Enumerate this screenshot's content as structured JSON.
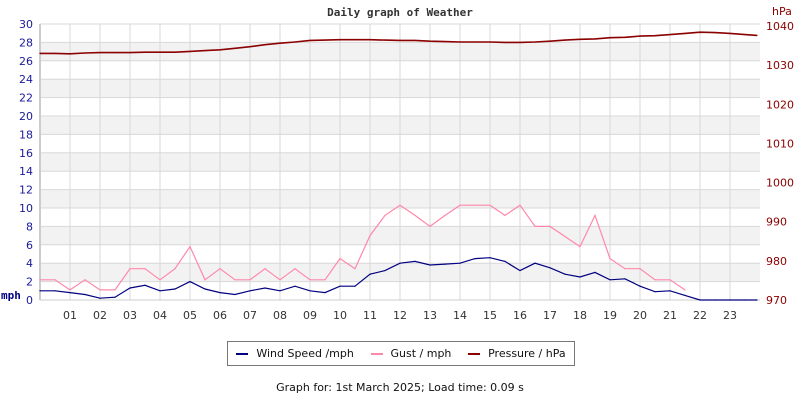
{
  "chart_data": {
    "type": "line",
    "title": "Daily graph of Weather",
    "left_unit": "mph",
    "right_unit": "hPa",
    "x_ticks": [
      "01",
      "02",
      "03",
      "04",
      "05",
      "06",
      "07",
      "08",
      "09",
      "10",
      "11",
      "12",
      "13",
      "14",
      "15",
      "16",
      "17",
      "18",
      "19",
      "20",
      "21",
      "22",
      "23"
    ],
    "xlim": [
      0,
      24
    ],
    "ylim_left": [
      0,
      30
    ],
    "y_ticks_left": [
      0,
      2,
      4,
      6,
      8,
      10,
      12,
      14,
      16,
      18,
      20,
      22,
      24,
      26,
      28,
      30
    ],
    "ylim_right": [
      970,
      1040.5
    ],
    "y_ticks_right": [
      970,
      980,
      990,
      1000,
      1010,
      1020,
      1030,
      1040
    ],
    "x_hours": [
      0,
      0.5,
      1,
      1.5,
      2,
      2.5,
      3,
      3.5,
      4,
      4.5,
      5,
      5.5,
      6,
      6.5,
      7,
      7.5,
      8,
      8.5,
      9,
      9.5,
      10,
      10.5,
      11,
      11.5,
      12,
      12.5,
      13,
      13.5,
      14,
      14.5,
      15,
      15.5,
      16,
      16.5,
      17,
      17.5,
      18,
      18.5,
      19,
      19.5,
      20,
      20.5,
      21,
      21.5,
      22,
      22.5,
      23,
      23.5,
      23.9
    ],
    "series": [
      {
        "name": "Wind Speed /mph",
        "axis": "left",
        "color": "#000080",
        "values": [
          1.0,
          1.0,
          0.8,
          0.6,
          0.2,
          0.3,
          1.3,
          1.6,
          1.0,
          1.2,
          2.0,
          1.2,
          0.8,
          0.6,
          1.0,
          1.3,
          1.0,
          1.5,
          1.0,
          0.8,
          1.5,
          1.5,
          2.8,
          3.2,
          4.0,
          4.2,
          3.8,
          3.9,
          4.0,
          4.5,
          4.6,
          4.2,
          3.2,
          4.0,
          3.5,
          2.8,
          2.5,
          3.0,
          2.2,
          2.3,
          1.5,
          0.9,
          1.0,
          0.5,
          0,
          0,
          0,
          0,
          0
        ]
      },
      {
        "name": "Gust / mph",
        "axis": "left",
        "color": "#ff88aa",
        "values": [
          2.2,
          2.2,
          1.1,
          2.2,
          1.1,
          1.1,
          3.4,
          3.4,
          2.2,
          3.4,
          5.8,
          2.2,
          3.4,
          2.2,
          2.2,
          3.4,
          2.2,
          3.4,
          2.2,
          2.2,
          4.5,
          3.4,
          7.0,
          9.2,
          10.3,
          9.2,
          8.0,
          9.2,
          10.3,
          10.3,
          10.3,
          9.2,
          10.3,
          8.0,
          8.0,
          6.9,
          5.8,
          9.2,
          4.5,
          3.4,
          3.4,
          2.2,
          2.2,
          1.1,
          null,
          null,
          null,
          null,
          null
        ]
      },
      {
        "name": "Pressure / hPa",
        "axis": "right",
        "color": "#8b0000",
        "values": [
          1033.0,
          1033.0,
          1032.9,
          1033.1,
          1033.2,
          1033.2,
          1033.2,
          1033.3,
          1033.3,
          1033.3,
          1033.5,
          1033.7,
          1033.9,
          1034.3,
          1034.7,
          1035.2,
          1035.6,
          1035.9,
          1036.3,
          1036.4,
          1036.5,
          1036.5,
          1036.5,
          1036.4,
          1036.3,
          1036.3,
          1036.1,
          1036.0,
          1035.9,
          1035.9,
          1035.9,
          1035.8,
          1035.8,
          1035.9,
          1036.1,
          1036.4,
          1036.6,
          1036.7,
          1037.0,
          1037.1,
          1037.4,
          1037.5,
          1037.8,
          1038.1,
          1038.4,
          1038.3,
          1038.1,
          1037.8,
          1037.6
        ]
      }
    ]
  },
  "legend": [
    "Wind Speed /mph",
    "Gust / mph",
    "Pressure / hPa"
  ],
  "footer": "Graph for: 1st March 2025; Load time: 0.09 s"
}
